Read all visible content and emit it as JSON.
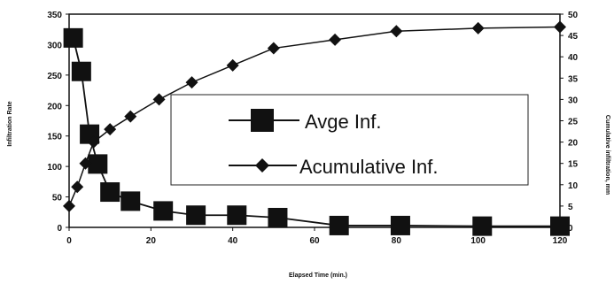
{
  "chart_data": {
    "type": "line",
    "title": "",
    "xlabel": "Elapsed Time (min.)",
    "ylabel": "Infiltration Rate",
    "y2label": "Cumulative infiltration, mm",
    "xlim": [
      0,
      120
    ],
    "ylim": [
      0,
      350
    ],
    "y2lim": [
      0,
      50
    ],
    "x_ticks": [
      0,
      20,
      40,
      60,
      80,
      100,
      120
    ],
    "y_ticks": [
      0,
      50,
      100,
      150,
      200,
      250,
      300,
      350
    ],
    "y2_ticks": [
      0,
      5,
      10,
      15,
      20,
      25,
      30,
      35,
      40,
      45,
      50
    ],
    "grid": false,
    "legend_position": "center-right",
    "series": [
      {
        "name": "Avge Inf.",
        "axis": "left",
        "marker": "square",
        "color": "#111111",
        "x": [
          1,
          3,
          5,
          7,
          10,
          15,
          23,
          31,
          41,
          51,
          66,
          81,
          101,
          120
        ],
        "y": [
          311,
          256,
          153,
          104,
          58,
          43,
          27,
          20,
          20,
          16,
          3,
          3,
          2,
          2
        ]
      },
      {
        "name": "Acumulative Inf.",
        "axis": "right",
        "marker": "diamond",
        "color": "#111111",
        "x": [
          0,
          2,
          4,
          6,
          10,
          15,
          22,
          30,
          40,
          50,
          65,
          80,
          100,
          120
        ],
        "y": [
          5,
          9.5,
          15,
          20,
          23,
          26,
          30,
          34,
          38,
          42,
          44,
          46,
          46.7,
          47
        ]
      }
    ]
  }
}
